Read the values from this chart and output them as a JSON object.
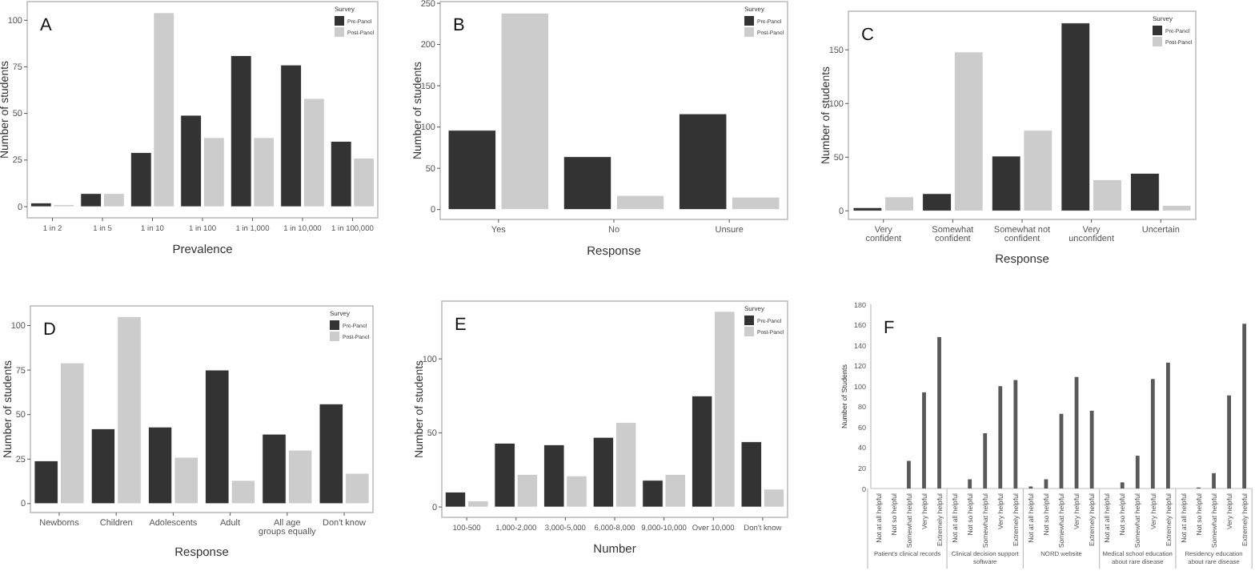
{
  "chart_data": [
    {
      "type": "bar",
      "title": "A",
      "xlabel": "Prevalence",
      "ylabel": "Number of students",
      "legend_title": "Survey",
      "legend": "top right",
      "grid": false,
      "categories": [
        "1 in 2",
        "1 in 5",
        "1 in 10",
        "1 in 100",
        "1 in 1,000",
        "1 in 10,000",
        "1 in 100,000"
      ],
      "ylim": [
        -6,
        110
      ],
      "yticks": [
        0,
        25,
        50,
        75,
        100
      ],
      "series": [
        {
          "name": "Pre-Panel",
          "color": "#333333",
          "values": [
            2,
            7,
            29,
            49,
            81,
            76,
            35
          ]
        },
        {
          "name": "Post-Panel",
          "color": "#cccccc",
          "values": [
            1,
            7,
            104,
            37,
            37,
            58,
            26
          ]
        }
      ]
    },
    {
      "type": "bar",
      "title": "B",
      "xlabel": "Response",
      "ylabel": "Number of students",
      "legend_title": "Survey",
      "legend": "top right",
      "grid": false,
      "categories": [
        "Yes",
        "No",
        "Unsure"
      ],
      "ylim": [
        -12,
        252
      ],
      "yticks": [
        0,
        50,
        100,
        150,
        200,
        250
      ],
      "series": [
        {
          "name": "Pre-Panel",
          "color": "#333333",
          "values": [
            96,
            64,
            116
          ]
        },
        {
          "name": "Post-Panel",
          "color": "#cccccc",
          "values": [
            238,
            17,
            15
          ]
        }
      ]
    },
    {
      "type": "bar",
      "title": "C",
      "xlabel": "Response",
      "ylabel": "Number of students",
      "legend_title": "Survey",
      "legend": "top right",
      "grid": false,
      "categories": [
        "Very\nconfident",
        "Somewhat\nconfident",
        "Somewhat not\nconfident",
        "Very\nunconfident",
        "Uncertain"
      ],
      "ylim": [
        -8,
        186
      ],
      "yticks": [
        0,
        50,
        100,
        150
      ],
      "series": [
        {
          "name": "Pre-Panel",
          "color": "#333333",
          "values": [
            3,
            16,
            51,
            175,
            35
          ]
        },
        {
          "name": "Post-Panel",
          "color": "#cccccc",
          "values": [
            13,
            148,
            75,
            29,
            5
          ]
        }
      ]
    },
    {
      "type": "bar",
      "title": "D",
      "xlabel": "Response",
      "ylabel": "Number of students",
      "legend_title": "Survey",
      "legend": "top right",
      "grid": false,
      "categories": [
        "Newborns",
        "Children",
        "Adolescents",
        "Adult",
        "All age\ngroups equally",
        "Don't know"
      ],
      "ylim": [
        -5,
        111
      ],
      "yticks": [
        0,
        25,
        50,
        75,
        100
      ],
      "series": [
        {
          "name": "Pre-Panel",
          "color": "#333333",
          "values": [
            24,
            42,
            43,
            75,
            39,
            56
          ]
        },
        {
          "name": "Post-Panel",
          "color": "#cccccc",
          "values": [
            79,
            105,
            26,
            13,
            30,
            17
          ]
        }
      ]
    },
    {
      "type": "bar",
      "title": "E",
      "xlabel": "Number",
      "ylabel": "Number of students",
      "legend_title": "Survey",
      "legend": "top right",
      "grid": false,
      "categories": [
        "100-500",
        "1,000-2,000",
        "3,000-5,000",
        "6,000-8,000",
        "9,000-10,000",
        "Over 10,000",
        "Don't know"
      ],
      "ylim": [
        -7,
        139
      ],
      "yticks": [
        0,
        50,
        100
      ],
      "series": [
        {
          "name": "Pre-Panel",
          "color": "#333333",
          "values": [
            10,
            43,
            42,
            47,
            18,
            75,
            44
          ]
        },
        {
          "name": "Post-Panel",
          "color": "#cccccc",
          "values": [
            4,
            22,
            21,
            57,
            22,
            132,
            12
          ]
        }
      ]
    },
    {
      "type": "bar",
      "title": "F",
      "ylabel": "Number of Students",
      "grid": false,
      "categories": [
        "Not at all helpful",
        "Not so helpful",
        "Somewhat helpful",
        "Very helpful",
        "Extremely helpful",
        "Not at all helpful",
        "Not so helpful",
        "Somewhat helpful",
        "Very helpful",
        "Extremely helpful",
        "Not at all helpful",
        "Not so helpful",
        "Somewhat helpful",
        "Very helpful",
        "Extremely helpful",
        "Not at all helpful",
        "Not so helpful",
        "Somewhat helpful",
        "Very helpful",
        "Extremely helpful",
        "Not at all helpful",
        "Not so helpful",
        "Somewhat helpful",
        "Very helpful",
        "Extremely helpful"
      ],
      "ylim": [
        0,
        180
      ],
      "yticks": [
        0,
        20,
        40,
        60,
        80,
        100,
        120,
        140,
        160,
        180
      ],
      "annotations": [
        "Patient's clinical records",
        "Clinical decision support\nsoftware",
        "NORD website",
        "Medical school education\nabout rare disease",
        "Residency education\nabout rare disease"
      ],
      "series": [
        {
          "color": "#595959",
          "values": [
            0,
            0,
            27,
            94,
            148,
            0,
            9,
            54,
            100,
            106,
            2,
            9,
            73,
            109,
            76,
            0,
            6,
            32,
            107,
            123,
            0,
            1,
            15,
            91,
            161
          ]
        }
      ]
    }
  ]
}
